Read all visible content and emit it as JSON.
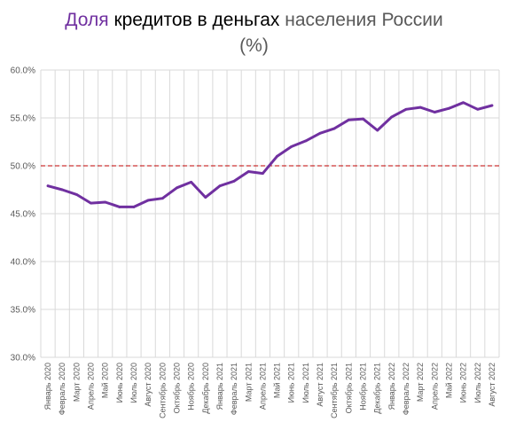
{
  "chart_data": {
    "type": "line",
    "title_parts": [
      "Доля",
      "кредитов в деньгах",
      "населения России",
      "(%)"
    ],
    "title_colors": [
      "#7030a0",
      "#000000",
      "#595959",
      "#595959"
    ],
    "ylim": [
      30,
      60
    ],
    "yticks": [
      "30.0%",
      "35.0%",
      "40.0%",
      "45.0%",
      "50.0%",
      "55.0%",
      "60.0%"
    ],
    "ytick_values": [
      30,
      35,
      40,
      45,
      50,
      55,
      60
    ],
    "reference_line": 50,
    "grid": true,
    "series_color": "#7030a0",
    "reference_color": "#c00000",
    "categories": [
      "Январь 2020",
      "Февраль 2020",
      "Март 2020",
      "Апрель 2020",
      "Май 2020",
      "Июнь 2020",
      "Июль 2020",
      "Август 2020",
      "Сентябрь 2020",
      "Октябрь 2020",
      "Ноябрь 2020",
      "Декабрь 2020",
      "Январь 2021",
      "Февраль 2021",
      "Март 2021",
      "Апрель 2021",
      "Май 2021",
      "Июнь 2021",
      "Июль 2021",
      "Август 2021",
      "Сентябрь 2021",
      "Октябрь 2021",
      "Ноябрь 2021",
      "Декабрь 2021",
      "Январь 2022",
      "Февраль 2022",
      "Март 2022",
      "Апрель 2022",
      "Май 2022",
      "Июнь 2022",
      "Июль 2022",
      "Август 2022"
    ],
    "values": [
      47.9,
      47.5,
      47.0,
      46.1,
      46.2,
      45.7,
      45.7,
      46.4,
      46.6,
      47.7,
      48.3,
      46.7,
      47.9,
      48.4,
      49.4,
      49.2,
      51.0,
      52.0,
      52.6,
      53.4,
      53.9,
      54.8,
      54.9,
      53.7,
      55.1,
      55.9,
      56.1,
      55.6,
      56.0,
      56.6,
      55.9,
      56.3
    ]
  }
}
